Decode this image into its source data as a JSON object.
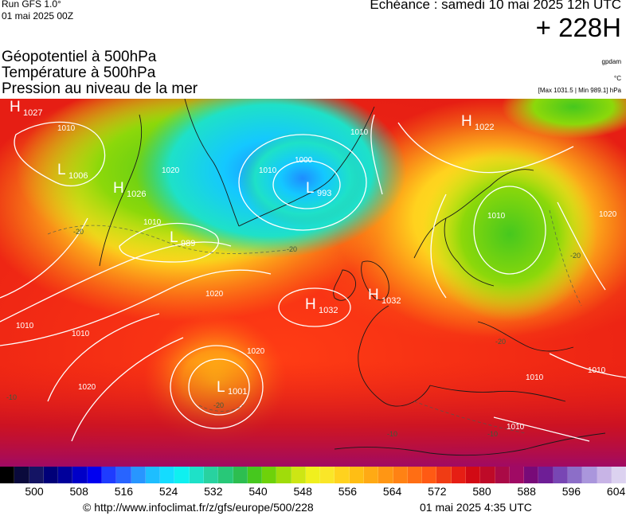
{
  "header": {
    "run": "Run GFS 1.0°",
    "run_date": "01 mai 2025 00Z",
    "echeance": "Echéance : samedi 10 mai 2025 12h UTC",
    "lead_time": "+ 228H"
  },
  "fields": {
    "line1": "Géopotentiel à 500hPa",
    "line2": "Température à 500hPa",
    "line3": "Pression au niveau de la mer"
  },
  "units": {
    "geopotential": "gpdam",
    "temperature": "°C",
    "maxmin": "[Max 1031.5 | Min 989.1] hPa"
  },
  "pressure_centers": [
    {
      "type": "H",
      "value": "1027"
    },
    {
      "type": "L",
      "value": "1006"
    },
    {
      "type": "H",
      "value": "1026"
    },
    {
      "type": "L",
      "value": "989"
    },
    {
      "type": "L",
      "value": "993"
    },
    {
      "type": "H",
      "value": "1032"
    },
    {
      "type": "H",
      "value": "1032"
    },
    {
      "type": "L",
      "value": "1001"
    },
    {
      "type": "H",
      "value": "1022"
    }
  ],
  "isobar_labels": [
    "1010",
    "1020",
    "1010",
    "1000",
    "1010",
    "1010",
    "1020",
    "1020",
    "1010",
    "1010",
    "1020",
    "1010",
    "1020",
    "1010",
    "1010",
    "1010"
  ],
  "isotherm_labels": [
    "-20",
    "-20",
    "-20",
    "-20",
    "-20",
    "-10",
    "-10",
    "-10"
  ],
  "colorbar": {
    "colors": [
      "#000000",
      "#0a0a3c",
      "#141464",
      "#000078",
      "#00009b",
      "#0000c8",
      "#0000f0",
      "#1e3cff",
      "#2864ff",
      "#2896ff",
      "#1ebeff",
      "#14dcff",
      "#0ff0f0",
      "#1ee1c8",
      "#28d2a0",
      "#28c878",
      "#2dbe50",
      "#46c81e",
      "#6ed20a",
      "#a0dc0a",
      "#cde614",
      "#f0f01e",
      "#fae628",
      "#ffd21e",
      "#ffbe14",
      "#ffaa14",
      "#ff9614",
      "#ff8214",
      "#ff6e14",
      "#ff5a14",
      "#f03c14",
      "#e61e14",
      "#d20a14",
      "#be0a28",
      "#aa0a46",
      "#a00a64",
      "#780a78",
      "#6e1e96",
      "#7846b4",
      "#8c6ec8",
      "#aa96dc",
      "#c8b4e6",
      "#dcd2f0"
    ],
    "ticks": [
      "500",
      "508",
      "516",
      "524",
      "532",
      "540",
      "548",
      "556",
      "564",
      "572",
      "580",
      "588",
      "596",
      "604"
    ]
  },
  "footer": {
    "url": "© http://www.infoclimat.fr/z/gfs/europe/500/228",
    "generated": "01 mai 2025  4:35 UTC"
  }
}
